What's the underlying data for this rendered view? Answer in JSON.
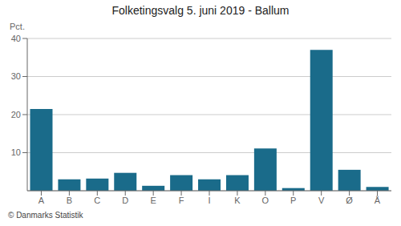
{
  "chart_data": {
    "type": "bar",
    "title": "Folketingsvalg 5. juni 2019 - Ballum",
    "ylabel": "Pct.",
    "footer": "© Danmarks Statistik",
    "categories": [
      "A",
      "B",
      "C",
      "D",
      "E",
      "F",
      "I",
      "K",
      "O",
      "P",
      "V",
      "Ø",
      "Å"
    ],
    "values": [
      21.5,
      3.0,
      3.2,
      4.7,
      1.3,
      4.1,
      3.0,
      4.1,
      11.1,
      0.7,
      37.0,
      5.5,
      1.0
    ],
    "color": "#1a6b8a",
    "ylim": [
      0,
      40
    ],
    "yticks": [
      10,
      20,
      30,
      40
    ],
    "grid": true
  }
}
